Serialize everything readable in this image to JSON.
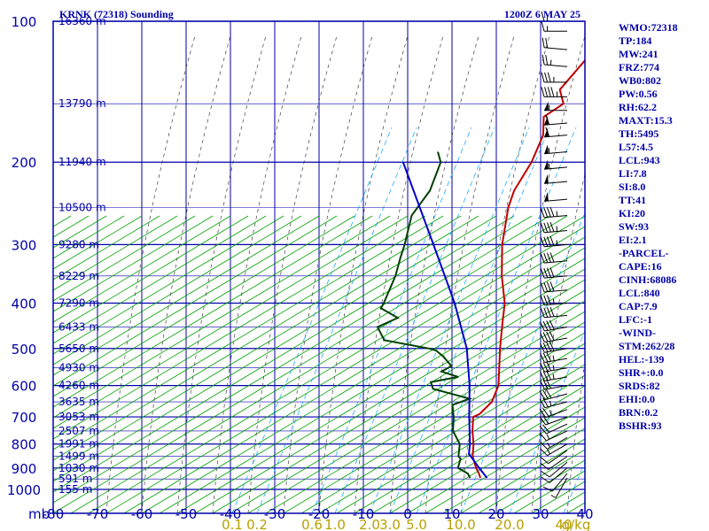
{
  "header": {
    "station": "KRNK (72318) Sounding",
    "time": "1200Z  6 MAY 25"
  },
  "colors": {
    "frame": "#0000aa",
    "temperature": "#c00000",
    "dewpoint": "#004000",
    "parcel": "#0000cc",
    "dry_adiabat": "#00a000",
    "moist_adiabat": "#404040",
    "mixing_ratio": "#00a0ff",
    "wind": "#000000",
    "mixing_labels": "#b8a000"
  },
  "indices": [
    "WMO:72318",
    "TP:184",
    "MW:241",
    "FRZ:774",
    "WB0:802",
    "PW:0.56",
    "RH:62.2",
    "MAXT:15.3",
    "TH:5495",
    "L57:4.5",
    "LCL:943",
    "LI:7.8",
    "SI:8.0",
    "TT:41",
    "KI:20",
    "SW:93",
    "EI:2.1",
    "-PARCEL-",
    "CAPE:16",
    "CINH:68086",
    "LCL:840",
    "CAP:7.9",
    "LFC:-1",
    "-WIND-",
    "STM:262/28",
    "HEL:-139",
    "SHR+:0.0",
    "SRDS:82",
    "EHI:0.0",
    "BRN:0.2",
    "BSHR:93"
  ],
  "chart_data": {
    "type": "line",
    "chart_kind": "skew-T log-P sounding",
    "x_axis": {
      "label": "°C",
      "units_label": "mb",
      "ticks": [
        "-80",
        "-70",
        "-60",
        "-50",
        "-40",
        "-30",
        "-20",
        "-10",
        "0",
        "10",
        "20",
        "30",
        "40"
      ],
      "range": [
        -80,
        40
      ]
    },
    "y_axis": {
      "label": "mb",
      "scale": "log",
      "ticks": [
        "100",
        "200",
        "300",
        "400",
        "500",
        "600",
        "700",
        "800",
        "900",
        "1000"
      ],
      "range": [
        1000,
        100
      ],
      "height_labels": [
        {
          "p": 100,
          "label": "16360 m"
        },
        {
          "p": 150,
          "label": "13790 m"
        },
        {
          "p": 200,
          "label": "11940 m"
        },
        {
          "p": 250,
          "label": "10500 m"
        },
        {
          "p": 300,
          "label": "9280 m"
        },
        {
          "p": 350,
          "label": "8229 m"
        },
        {
          "p": 400,
          "label": "7290 m"
        },
        {
          "p": 450,
          "label": "6433 m"
        },
        {
          "p": 500,
          "label": "5650 m"
        },
        {
          "p": 550,
          "label": "4930 m"
        },
        {
          "p": 600,
          "label": "4260 m"
        },
        {
          "p": 650,
          "label": "3635 m"
        },
        {
          "p": 700,
          "label": "3053 m"
        },
        {
          "p": 750,
          "label": "2507 m"
        },
        {
          "p": 800,
          "label": "1991 m"
        },
        {
          "p": 850,
          "label": "1499 m"
        },
        {
          "p": 900,
          "label": "1030 m"
        },
        {
          "p": 950,
          "label": "591 m"
        },
        {
          "p": 1000,
          "label": "155 m"
        }
      ]
    },
    "mixing_ratio_labels": [
      "0.1",
      "0.2",
      "0.6",
      "1.0",
      "2.0",
      "3.0",
      "5.0",
      "10.0",
      "20.0",
      "40",
      "g/kg"
    ],
    "mixing_ratio_values": [
      0.1,
      0.2,
      0.6,
      1.0,
      2.0,
      3.0,
      5.0,
      10.0,
      20.0,
      40
    ],
    "series": [
      {
        "key": "temperature",
        "points": [
          {
            "p": 945,
            "t": 13.8
          },
          {
            "p": 925,
            "t": 12.5
          },
          {
            "p": 900,
            "t": 10.6
          },
          {
            "p": 850,
            "t": 7.2
          },
          {
            "p": 800,
            "t": 4.6
          },
          {
            "p": 750,
            "t": 1.4
          },
          {
            "p": 700,
            "t": -1.6
          },
          {
            "p": 690,
            "t": -0.8
          },
          {
            "p": 650,
            "t": -0.8
          },
          {
            "p": 600,
            "t": -3.0
          },
          {
            "p": 550,
            "t": -6.8
          },
          {
            "p": 500,
            "t": -11.0
          },
          {
            "p": 450,
            "t": -15.4
          },
          {
            "p": 400,
            "t": -20.2
          },
          {
            "p": 350,
            "t": -27.0
          },
          {
            "p": 300,
            "t": -34.0
          },
          {
            "p": 250,
            "t": -41.0
          },
          {
            "p": 230,
            "t": -43.5
          },
          {
            "p": 200,
            "t": -46.0
          },
          {
            "p": 175,
            "t": -49.5
          },
          {
            "p": 160,
            "t": -53.5
          },
          {
            "p": 150,
            "t": -52.0
          },
          {
            "p": 140,
            "t": -56.0
          },
          {
            "p": 120,
            "t": -57.0
          },
          {
            "p": 110,
            "t": -59.0
          },
          {
            "p": 100,
            "t": -61.5
          }
        ]
      },
      {
        "key": "dewpoint",
        "points": [
          {
            "p": 945,
            "t": 11.5
          },
          {
            "p": 925,
            "t": 10.0
          },
          {
            "p": 900,
            "t": 6.5
          },
          {
            "p": 860,
            "t": 5.0
          },
          {
            "p": 850,
            "t": 4.0
          },
          {
            "p": 800,
            "t": 1.5
          },
          {
            "p": 750,
            "t": -3.0
          },
          {
            "p": 700,
            "t": -6.0
          },
          {
            "p": 660,
            "t": -9.0
          },
          {
            "p": 640,
            "t": -6.5
          },
          {
            "p": 610,
            "t": -17.0
          },
          {
            "p": 590,
            "t": -19.0
          },
          {
            "p": 575,
            "t": -14.0
          },
          {
            "p": 560,
            "t": -19.0
          },
          {
            "p": 545,
            "t": -18.0
          },
          {
            "p": 520,
            "t": -22.0
          },
          {
            "p": 505,
            "t": -25.0
          },
          {
            "p": 500,
            "t": -27.0
          },
          {
            "p": 480,
            "t": -39.0
          },
          {
            "p": 450,
            "t": -43.5
          },
          {
            "p": 430,
            "t": -41.0
          },
          {
            "p": 410,
            "t": -47.0
          },
          {
            "p": 400,
            "t": -47.5
          },
          {
            "p": 350,
            "t": -51.0
          },
          {
            "p": 320,
            "t": -54.0
          },
          {
            "p": 300,
            "t": -56.0
          },
          {
            "p": 260,
            "t": -61.0
          },
          {
            "p": 230,
            "t": -62.5
          },
          {
            "p": 200,
            "t": -66.5
          },
          {
            "p": 190,
            "t": -69.5
          }
        ]
      },
      {
        "key": "parcel",
        "points": [
          {
            "p": 945,
            "t": 15.3
          },
          {
            "p": 900,
            "t": 11.3
          },
          {
            "p": 850,
            "t": 6.8
          },
          {
            "p": 840,
            "t": 5.8
          },
          {
            "p": 800,
            "t": 3.8
          },
          {
            "p": 700,
            "t": -2.5
          },
          {
            "p": 600,
            "t": -9.5
          },
          {
            "p": 500,
            "t": -18.5
          },
          {
            "p": 400,
            "t": -31.5
          },
          {
            "p": 300,
            "t": -49.5
          },
          {
            "p": 200,
            "t": -75.0
          }
        ]
      }
    ],
    "wind_barbs": [
      {
        "p": 100,
        "dir": 270,
        "spd": 15
      },
      {
        "p": 105,
        "dir": 270,
        "spd": 15
      },
      {
        "p": 115,
        "dir": 275,
        "spd": 20
      },
      {
        "p": 125,
        "dir": 275,
        "spd": 25
      },
      {
        "p": 135,
        "dir": 270,
        "spd": 35
      },
      {
        "p": 145,
        "dir": 270,
        "spd": 45
      },
      {
        "p": 155,
        "dir": 270,
        "spd": 55
      },
      {
        "p": 165,
        "dir": 265,
        "spd": 60
      },
      {
        "p": 175,
        "dir": 265,
        "spd": 60
      },
      {
        "p": 190,
        "dir": 265,
        "spd": 55
      },
      {
        "p": 205,
        "dir": 265,
        "spd": 55
      },
      {
        "p": 220,
        "dir": 265,
        "spd": 50
      },
      {
        "p": 240,
        "dir": 265,
        "spd": 50
      },
      {
        "p": 260,
        "dir": 265,
        "spd": 45
      },
      {
        "p": 280,
        "dir": 265,
        "spd": 45
      },
      {
        "p": 300,
        "dir": 265,
        "spd": 45
      },
      {
        "p": 325,
        "dir": 265,
        "spd": 40
      },
      {
        "p": 350,
        "dir": 265,
        "spd": 40
      },
      {
        "p": 375,
        "dir": 265,
        "spd": 40
      },
      {
        "p": 400,
        "dir": 265,
        "spd": 35
      },
      {
        "p": 425,
        "dir": 265,
        "spd": 40
      },
      {
        "p": 450,
        "dir": 260,
        "spd": 40
      },
      {
        "p": 475,
        "dir": 260,
        "spd": 40
      },
      {
        "p": 500,
        "dir": 260,
        "spd": 40
      },
      {
        "p": 525,
        "dir": 260,
        "spd": 35
      },
      {
        "p": 550,
        "dir": 260,
        "spd": 35
      },
      {
        "p": 575,
        "dir": 260,
        "spd": 35
      },
      {
        "p": 600,
        "dir": 260,
        "spd": 30
      },
      {
        "p": 625,
        "dir": 255,
        "spd": 30
      },
      {
        "p": 650,
        "dir": 255,
        "spd": 25
      },
      {
        "p": 675,
        "dir": 250,
        "spd": 25
      },
      {
        "p": 700,
        "dir": 250,
        "spd": 20
      },
      {
        "p": 725,
        "dir": 245,
        "spd": 20
      },
      {
        "p": 750,
        "dir": 245,
        "spd": 15
      },
      {
        "p": 775,
        "dir": 240,
        "spd": 15
      },
      {
        "p": 800,
        "dir": 240,
        "spd": 15
      },
      {
        "p": 825,
        "dir": 235,
        "spd": 10
      },
      {
        "p": 850,
        "dir": 235,
        "spd": 10
      },
      {
        "p": 875,
        "dir": 230,
        "spd": 10
      },
      {
        "p": 900,
        "dir": 230,
        "spd": 10
      },
      {
        "p": 925,
        "dir": 220,
        "spd": 10
      },
      {
        "p": 945,
        "dir": 210,
        "spd": 5
      }
    ]
  }
}
